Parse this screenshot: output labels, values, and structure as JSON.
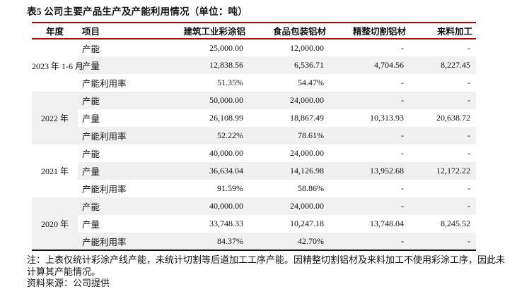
{
  "title": "表5 公司主要产品生产及产能利用情况（单位：吨）",
  "colors": {
    "rule_red": "#b30000",
    "rule_black": "#111111",
    "band_gray": "#f0f0f0"
  },
  "table": {
    "headers": {
      "year": "年度",
      "item": "项目",
      "col3": "建筑工业彩涂铝",
      "col4": "食品包装铝材",
      "col5": "精整切割铝材",
      "col6": "来料加工"
    },
    "row_labels": {
      "capacity": "产能",
      "output": "产量",
      "utilization": "产能利用率"
    },
    "groups": [
      {
        "year": "2023 年 1-6 月",
        "rows": [
          {
            "item": "产能",
            "values": [
              "25,000.00",
              "12,000.00",
              "-",
              "-"
            ]
          },
          {
            "item": "产量",
            "values": [
              "12,838.56",
              "6,536.71",
              "4,704.56",
              "8,227.45"
            ]
          },
          {
            "item": "产能利用率",
            "values": [
              "51.35%",
              "54.47%",
              "-",
              "-"
            ]
          }
        ]
      },
      {
        "year": "2022 年",
        "rows": [
          {
            "item": "产能",
            "values": [
              "50,000.00",
              "24,000.00",
              "-",
              "-"
            ]
          },
          {
            "item": "产量",
            "values": [
              "26,108.99",
              "18,867.49",
              "10,313.93",
              "20,638.72"
            ]
          },
          {
            "item": "产能利用率",
            "values": [
              "52.22%",
              "78.61%",
              "-",
              "-"
            ]
          }
        ]
      },
      {
        "year": "2021 年",
        "rows": [
          {
            "item": "产能",
            "values": [
              "40,000.00",
              "24,000.00",
              "-",
              "-"
            ]
          },
          {
            "item": "产量",
            "values": [
              "36,634.04",
              "14,126.98",
              "13,952.68",
              "12,172.22"
            ]
          },
          {
            "item": "产能利用率",
            "values": [
              "91.59%",
              "58.86%",
              "-",
              "-"
            ]
          }
        ]
      },
      {
        "year": "2020 年",
        "rows": [
          {
            "item": "产能",
            "values": [
              "40,000.00",
              "24,000.00",
              "-",
              "-"
            ]
          },
          {
            "item": "产量",
            "values": [
              "33,748.33",
              "10,247.18",
              "13,748.04",
              "8,245.52"
            ]
          },
          {
            "item": "产能利用率",
            "values": [
              "84.37%",
              "42.70%",
              "-",
              "-"
            ]
          }
        ]
      }
    ]
  },
  "footnote": "注：上表仅统计彩涂产线产能，未统计切割等后道加工工序产能。因精整切割铝材及来料加工不使用彩涂工序，因此未计算其产能情况。",
  "source": "资料来源：公司提供"
}
